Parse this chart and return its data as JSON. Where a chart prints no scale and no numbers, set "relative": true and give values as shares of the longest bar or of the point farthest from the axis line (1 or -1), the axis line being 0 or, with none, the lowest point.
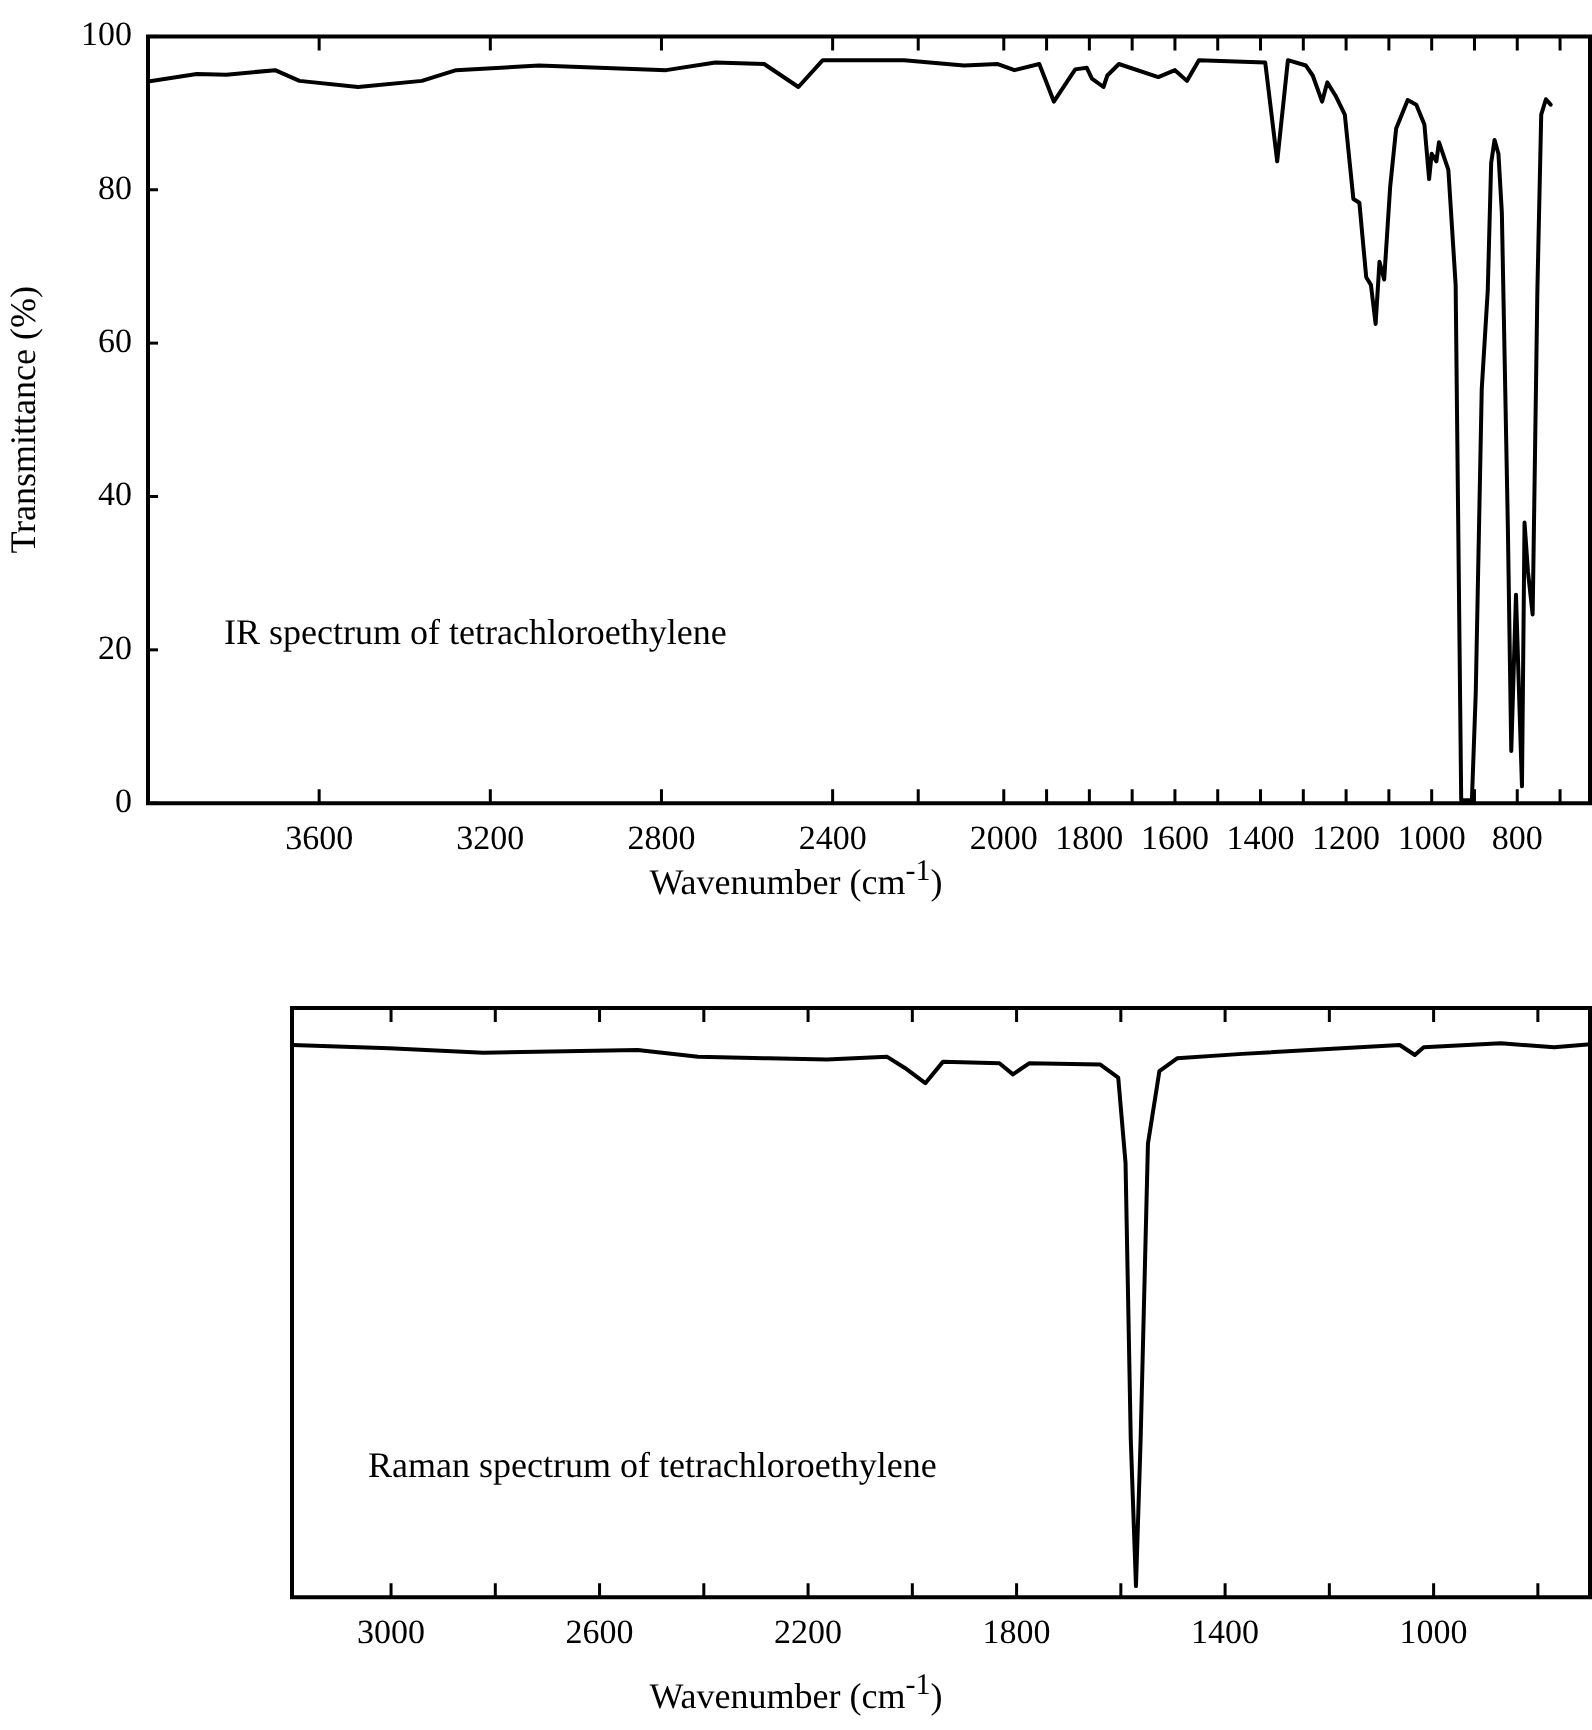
{
  "chart_data": [
    {
      "type": "line",
      "xlabel": "Wavenumber (cm$^{-1}$)",
      "ylabel": "Transmittance (%)",
      "annotations": [
        "IR spectrum of tetrachloroethylene"
      ],
      "xlim": [
        4000,
        630
      ],
      "ylim": [
        0,
        100
      ],
      "yticks": [
        0,
        20,
        40,
        60,
        80,
        100
      ],
      "xticks": [
        3600,
        3200,
        2800,
        2400,
        {
          "value": 2200,
          "label": null
        },
        2000,
        {
          "value": 1900,
          "label": null
        },
        1800,
        {
          "value": 1700,
          "label": null
        },
        1600,
        {
          "value": 1500,
          "label": null
        },
        1400,
        {
          "value": 1300,
          "label": null
        },
        1200,
        {
          "value": 1100,
          "label": null
        },
        1000,
        {
          "value": 900,
          "label": null
        },
        800,
        {
          "value": 700,
          "label": null
        }
      ],
      "grid": false,
      "legend": false,
      "marker": "none",
      "line_style": "solid",
      "x": [
        4000,
        3886,
        3817,
        3703,
        3646,
        3509,
        3360,
        3280,
        3086,
        2789,
        2674,
        2560,
        2480,
        2423,
        2233,
        2093,
        2014,
        1975,
        1917,
        1883,
        1833,
        1806,
        1794,
        1767,
        1758,
        1731,
        1639,
        1600,
        1572,
        1544,
        1389,
        1361,
        1336,
        1294,
        1278,
        1256,
        1244,
        1225,
        1203,
        1183,
        1169,
        1153,
        1142,
        1131,
        1122,
        1111,
        1097,
        1083,
        1056,
        1036,
        1017,
        1006,
        1000,
        989,
        983,
        961,
        944,
        931,
        906,
        897,
        883,
        869,
        861,
        853,
        844,
        836,
        822,
        814,
        803,
        789,
        783,
        775,
        764,
        753,
        744,
        733,
        722
      ],
      "series": [
        {
          "color": "#000000",
          "values": [
            94.1,
            95.1,
            95.0,
            95.6,
            94.2,
            93.4,
            94.2,
            95.6,
            96.2,
            95.6,
            96.6,
            96.4,
            93.4,
            96.9,
            96.9,
            96.2,
            96.4,
            95.6,
            96.4,
            91.5,
            95.7,
            95.9,
            94.5,
            93.4,
            94.9,
            96.4,
            94.7,
            95.6,
            94.2,
            96.9,
            96.6,
            83.7,
            96.9,
            96.2,
            94.9,
            91.5,
            94.0,
            92.3,
            89.8,
            78.8,
            78.3,
            68.6,
            67.6,
            62.5,
            70.6,
            68.3,
            80.4,
            88.0,
            91.7,
            91.1,
            88.5,
            81.4,
            84.7,
            83.7,
            86.2,
            82.6,
            67.6,
            0.4,
            0.4,
            14.4,
            54,
            66.8,
            83.5,
            86.5,
            84.7,
            77,
            36.1,
            6.8,
            27.2,
            2.2,
            36.6,
            30.2,
            24.6,
            66.8,
            89.8,
            91.8,
            91.1
          ]
        }
      ]
    },
    {
      "type": "line",
      "xlabel": "Wavenumber (cm$^{-1}$)",
      "annotations": [
        "Raman spectrum of tetrachloroethylene"
      ],
      "relative": true,
      "tick_labels": "x",
      "xlim": [
        3190,
        700
      ],
      "xticks": [
        3000,
        {
          "value": 2800,
          "label": null
        },
        2600,
        {
          "value": 2400,
          "label": null
        },
        2200,
        {
          "value": 2000,
          "label": null
        },
        1800,
        {
          "value": 1600,
          "label": null
        },
        1400,
        {
          "value": 1200,
          "label": null
        },
        1000,
        {
          "value": 800,
          "label": null
        }
      ],
      "grid": false,
      "legend": false,
      "marker": "none",
      "line_style": "solid",
      "x": [
        3189,
        3004,
        2823,
        2527,
        2411,
        2276,
        2164,
        2049,
        2015,
        1975,
        1941,
        1833,
        1807,
        1776,
        1640,
        1605,
        1591,
        1581,
        1571,
        1562,
        1548,
        1526,
        1492,
        1367,
        1065,
        1036,
        1019,
        871,
        769,
        705
      ],
      "series": [
        {
          "color": "#000000",
          "values": [
            0.997,
            0.991,
            0.983,
            0.988,
            0.976,
            0.973,
            0.971,
            0.976,
            0.956,
            0.928,
            0.967,
            0.964,
            0.944,
            0.964,
            0.962,
            0.938,
            0.784,
            0.286,
            0.02,
            0.286,
            0.819,
            0.95,
            0.973,
            0.981,
            0.997,
            0.979,
            0.993,
            1.0,
            0.993,
            0.998
          ]
        }
      ]
    }
  ]
}
